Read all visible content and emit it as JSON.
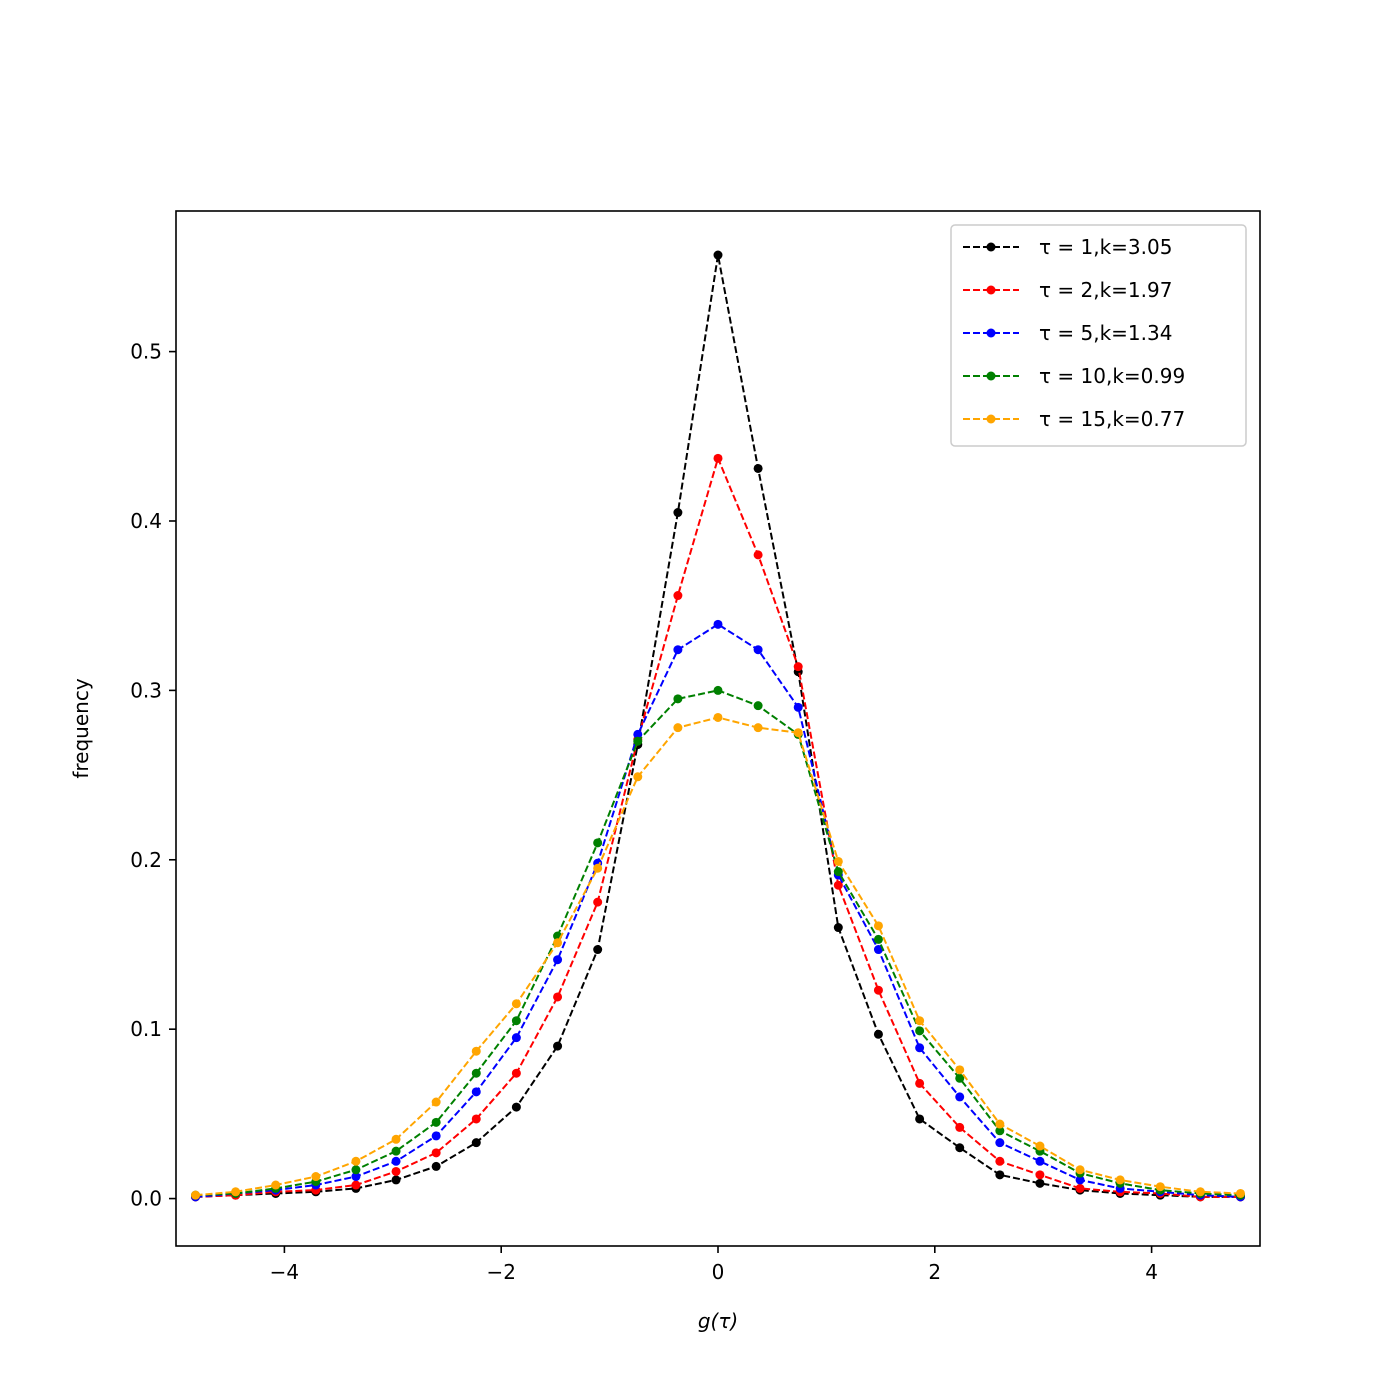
{
  "chart_data": {
    "type": "line",
    "title": "",
    "xlabel": "g(τ)",
    "ylabel": "frequency",
    "xlim": [
      -5.0,
      5.0
    ],
    "ylim": [
      -0.028,
      0.583
    ],
    "xticks": [
      -4,
      -2,
      0,
      2,
      4
    ],
    "xtick_labels": [
      "−4",
      "−2",
      "0",
      "2",
      "4"
    ],
    "yticks": [
      0.0,
      0.1,
      0.2,
      0.3,
      0.4,
      0.5
    ],
    "ytick_labels": [
      "0.0",
      "0.1",
      "0.2",
      "0.3",
      "0.4",
      "0.5"
    ],
    "grid": false,
    "legend_position": "top-right",
    "line_style": "dashed",
    "marker": "dot",
    "x": [
      -4.82,
      -4.45,
      -4.08,
      -3.71,
      -3.34,
      -2.97,
      -2.6,
      -2.23,
      -1.86,
      -1.48,
      -1.11,
      -0.74,
      -0.37,
      0.0,
      0.37,
      0.74,
      1.11,
      1.48,
      1.86,
      2.23,
      2.6,
      2.97,
      3.34,
      3.71,
      4.08,
      4.45,
      4.82
    ],
    "series": [
      {
        "name": "τ = 1,k=3.05",
        "tau": "1",
        "k": "3.05",
        "color": "#000000",
        "values": [
          0.001,
          0.002,
          0.003,
          0.004,
          0.006,
          0.011,
          0.019,
          0.033,
          0.054,
          0.09,
          0.147,
          0.268,
          0.405,
          0.557,
          0.431,
          0.311,
          0.16,
          0.097,
          0.047,
          0.03,
          0.014,
          0.009,
          0.005,
          0.003,
          0.002,
          0.001,
          0.001
        ]
      },
      {
        "name": "τ = 2,k=1.97",
        "tau": "2",
        "k": "1.97",
        "color": "#ff0000",
        "values": [
          0.001,
          0.002,
          0.004,
          0.005,
          0.008,
          0.016,
          0.027,
          0.047,
          0.074,
          0.119,
          0.175,
          0.271,
          0.356,
          0.437,
          0.38,
          0.314,
          0.185,
          0.123,
          0.068,
          0.042,
          0.022,
          0.014,
          0.006,
          0.004,
          0.003,
          0.001,
          0.001
        ]
      },
      {
        "name": "τ = 5,k=1.34",
        "tau": "5",
        "k": "1.34",
        "color": "#0000ff",
        "values": [
          0.001,
          0.003,
          0.005,
          0.008,
          0.013,
          0.022,
          0.037,
          0.063,
          0.095,
          0.141,
          0.198,
          0.274,
          0.324,
          0.339,
          0.324,
          0.29,
          0.191,
          0.147,
          0.089,
          0.06,
          0.033,
          0.022,
          0.011,
          0.006,
          0.004,
          0.002,
          0.001
        ]
      },
      {
        "name": "τ = 10,k=0.99",
        "tau": "10",
        "k": "0.99",
        "color": "#008000",
        "values": [
          0.002,
          0.003,
          0.006,
          0.01,
          0.017,
          0.028,
          0.045,
          0.074,
          0.105,
          0.155,
          0.21,
          0.27,
          0.295,
          0.3,
          0.291,
          0.274,
          0.193,
          0.153,
          0.099,
          0.071,
          0.04,
          0.028,
          0.015,
          0.009,
          0.005,
          0.003,
          0.002
        ]
      },
      {
        "name": "τ = 15,k=0.77",
        "tau": "15",
        "k": "0.77",
        "color": "#ffa500",
        "values": [
          0.002,
          0.004,
          0.008,
          0.013,
          0.022,
          0.035,
          0.057,
          0.087,
          0.115,
          0.151,
          0.195,
          0.249,
          0.278,
          0.284,
          0.278,
          0.275,
          0.199,
          0.161,
          0.105,
          0.076,
          0.044,
          0.031,
          0.017,
          0.011,
          0.007,
          0.004,
          0.003
        ]
      }
    ]
  }
}
